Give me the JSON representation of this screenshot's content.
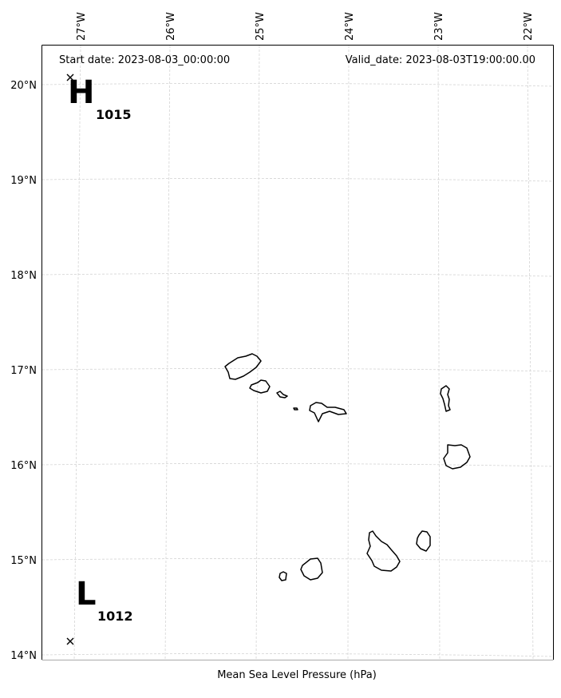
{
  "header": {
    "start_date": "Start date: 2023-08-03_00:00:00",
    "valid_date": "Valid_date: 2023-08-03T19:00:00.00"
  },
  "axes": {
    "lon_ticks": [
      "27°W",
      "26°W",
      "25°W",
      "24°W",
      "23°W",
      "22°W"
    ],
    "lat_ticks": [
      "20°N",
      "19°N",
      "18°N",
      "17°N",
      "16°N",
      "15°N",
      "14°N"
    ],
    "xlabel": "Mean Sea Level Pressure (hPa)"
  },
  "pressure_centers": [
    {
      "label": "H",
      "value": "1015",
      "lon": -26.95,
      "lat": 20.07
    },
    {
      "label": "L",
      "value": "1012",
      "lon": -26.95,
      "lat": 14.14
    }
  ],
  "grid": true,
  "colors": {
    "grid": "#d4d4d4",
    "coastline": "#000000"
  }
}
